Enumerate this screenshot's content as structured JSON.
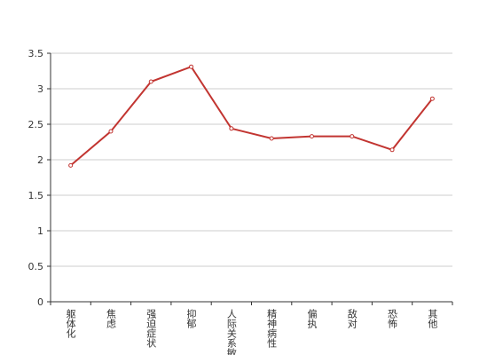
{
  "chart_data": {
    "type": "line",
    "categories": [
      "躯体化",
      "焦虑",
      "强迫症状",
      "抑郁",
      "人际关系敏感",
      "精神病性",
      "偏执",
      "敌对",
      "恐怖",
      "其他"
    ],
    "series": [
      {
        "color": "#c23531",
        "values": [
          1.92,
          2.4,
          3.1,
          3.31,
          2.44,
          2.3,
          2.33,
          2.33,
          2.14,
          2.86
        ]
      }
    ],
    "ylim": [
      0,
      3.5
    ],
    "yticks": [
      0,
      0.5,
      1,
      1.5,
      2,
      2.5,
      3,
      3.5
    ],
    "grid": true
  }
}
